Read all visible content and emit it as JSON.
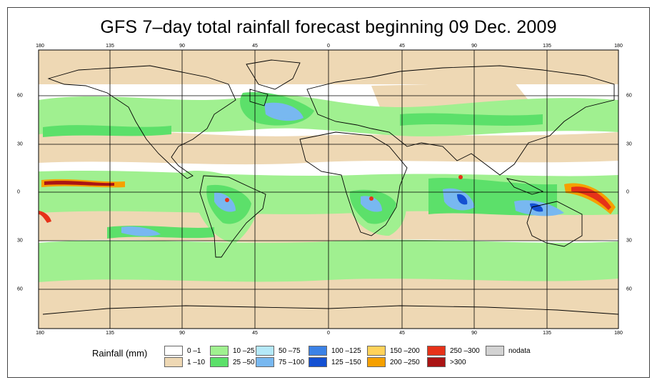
{
  "title": "GFS 7–day total rainfall forecast beginning 09 Dec. 2009",
  "map": {
    "lon_ticks": [
      "180",
      "135",
      "90",
      "45",
      "0",
      "45",
      "90",
      "135",
      "180"
    ],
    "lat_ticks": [
      "60",
      "30",
      "0",
      "30",
      "60"
    ],
    "lon_range": [
      -180,
      180
    ],
    "lat_range": [
      -90,
      90
    ]
  },
  "legend": {
    "title": "Rainfall (mm)",
    "classes": [
      {
        "label": "0 –1",
        "color": "#ffffff"
      },
      {
        "label": "1 –10",
        "color": "#eed8b4"
      },
      {
        "label": "10 –25",
        "color": "#a0f090"
      },
      {
        "label": "25 –50",
        "color": "#5ce06a"
      },
      {
        "label": "50 –75",
        "color": "#b4e8f8"
      },
      {
        "label": "75 –100",
        "color": "#78b8f0"
      },
      {
        "label": "100 –125",
        "color": "#3c82e6"
      },
      {
        "label": "125 –150",
        "color": "#1450d2"
      },
      {
        "label": "150 –200",
        "color": "#ffd25a"
      },
      {
        "label": "200 –250",
        "color": "#f5a000"
      },
      {
        "label": "250 –300",
        "color": "#e63219"
      },
      {
        "label": ">300",
        "color": "#aa1414"
      },
      {
        "label": "nodata",
        "color": "#d2d2d2"
      }
    ]
  }
}
